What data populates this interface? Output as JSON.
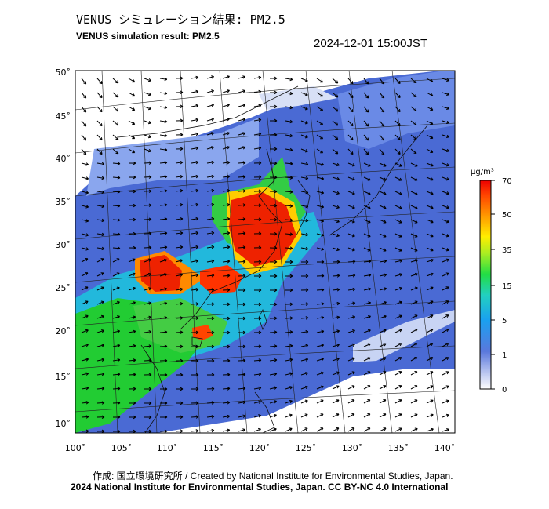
{
  "header": {
    "title_jp": "VENUS シミュレーション結果: PM2.5",
    "title_en": "VENUS simulation result: PM2.5",
    "timestamp": "2024-12-01 15:00JST"
  },
  "map": {
    "lat_labels": [
      "50˚",
      "45˚",
      "40˚",
      "35˚",
      "30˚",
      "25˚",
      "20˚",
      "15˚",
      "10˚"
    ],
    "lon_labels": [
      "100˚",
      "105˚",
      "110˚",
      "115˚",
      "120˚",
      "125˚",
      "130˚",
      "135˚",
      "140˚"
    ],
    "lat_range": [
      10,
      50
    ],
    "lon_range": [
      100,
      140
    ],
    "colors": {
      "ocean": "#4f6fd6",
      "land_low": "#7fa0ee",
      "green": "#22cc22",
      "red": "#ee2200",
      "orange": "#ff9900",
      "cyan": "#22c8d8"
    }
  },
  "legend": {
    "unit": "µg/m³",
    "ticks": [
      "70",
      "50",
      "35",
      "15",
      "5",
      "1",
      "0"
    ]
  },
  "footer": {
    "credit": "作成: 国立環境研究所 / Created by National Institute for Environmental Studies, Japan.",
    "license": "2024 National Institute for Environmental Studies, Japan. CC BY-NC 4.0 International"
  }
}
